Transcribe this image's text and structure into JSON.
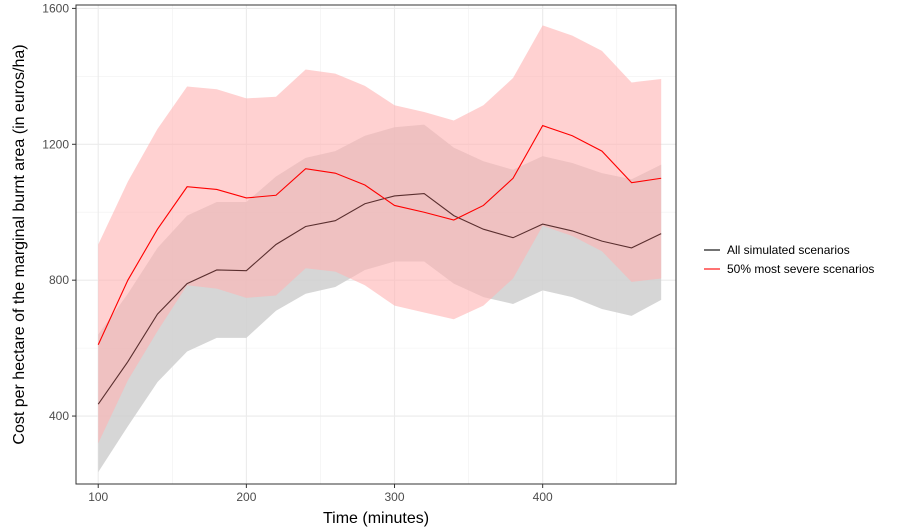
{
  "chart_data": {
    "type": "line",
    "title": "",
    "xlabel": "Time (minutes)",
    "ylabel": "Cost per hectare of the marginal burnt area (in euros/ha)",
    "xlim": [
      85,
      490
    ],
    "ylim": [
      200,
      1610
    ],
    "x_ticks": [
      100,
      200,
      300,
      400
    ],
    "y_ticks": [
      400,
      800,
      1200,
      1600
    ],
    "grid": true,
    "legend_position": "right",
    "x": [
      100,
      120,
      140,
      160,
      180,
      200,
      220,
      240,
      260,
      280,
      300,
      320,
      340,
      360,
      380,
      400,
      420,
      440,
      460,
      480
    ],
    "series": [
      {
        "name": "All simulated scenarios",
        "color": "#000000",
        "line_color": "#5a2f2f",
        "band_color": "#cfcfcf",
        "values": [
          435,
          560,
          700,
          790,
          830,
          828,
          905,
          958,
          975,
          1025,
          1048,
          1055,
          990,
          950,
          925,
          965,
          945,
          915,
          895,
          937
        ],
        "lower": [
          235,
          370,
          500,
          590,
          630,
          630,
          710,
          760,
          780,
          830,
          855,
          855,
          790,
          750,
          730,
          770,
          750,
          715,
          695,
          742
        ],
        "upper": [
          640,
          760,
          895,
          990,
          1030,
          1030,
          1105,
          1160,
          1180,
          1225,
          1250,
          1258,
          1190,
          1150,
          1125,
          1165,
          1145,
          1115,
          1097,
          1140
        ]
      },
      {
        "name": "50% most severe scenarios",
        "color": "#ff0000",
        "line_color": "#ff0000",
        "band_color": "#ffb3b3",
        "values": [
          610,
          800,
          950,
          1075,
          1067,
          1042,
          1050,
          1128,
          1115,
          1080,
          1020,
          1000,
          977,
          1020,
          1100,
          1255,
          1225,
          1180,
          1087,
          1100
        ],
        "lower": [
          320,
          505,
          650,
          785,
          775,
          748,
          755,
          835,
          825,
          785,
          725,
          705,
          685,
          725,
          805,
          960,
          930,
          885,
          795,
          805
        ],
        "upper": [
          905,
          1090,
          1245,
          1370,
          1362,
          1335,
          1340,
          1420,
          1408,
          1372,
          1315,
          1295,
          1270,
          1315,
          1395,
          1550,
          1520,
          1475,
          1382,
          1392
        ]
      }
    ]
  }
}
